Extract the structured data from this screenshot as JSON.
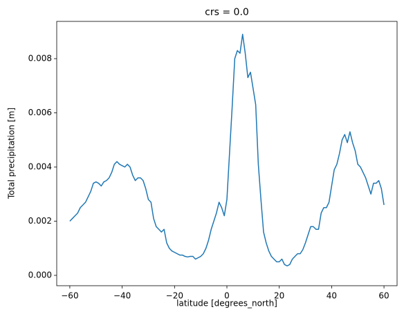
{
  "chart_data": {
    "type": "line",
    "title": "crs = 0.0",
    "xlabel": "latitude [degrees_north]",
    "ylabel": "Total precipitation [m]",
    "x": [
      -60,
      -59,
      -58,
      -57,
      -56,
      -55,
      -54,
      -53,
      -52,
      -51,
      -50,
      -49,
      -48,
      -47,
      -46,
      -45,
      -44,
      -43,
      -42,
      -41,
      -40,
      -39,
      -38,
      -37,
      -36,
      -35,
      -34,
      -33,
      -32,
      -31,
      -30,
      -29,
      -28,
      -27,
      -26,
      -25,
      -24,
      -23,
      -22,
      -21,
      -20,
      -19,
      -18,
      -17,
      -16,
      -15,
      -14,
      -13,
      -12,
      -11,
      -10,
      -9,
      -8,
      -7,
      -6,
      -5,
      -4,
      -3,
      -2,
      -1,
      0,
      1,
      2,
      3,
      4,
      5,
      6,
      7,
      8,
      9,
      10,
      11,
      12,
      13,
      14,
      15,
      16,
      17,
      18,
      19,
      20,
      21,
      22,
      23,
      24,
      25,
      26,
      27,
      28,
      29,
      30,
      31,
      32,
      33,
      34,
      35,
      36,
      37,
      38,
      39,
      40,
      41,
      42,
      43,
      44,
      45,
      46,
      47,
      48,
      49,
      50,
      51,
      52,
      53,
      54,
      55,
      56,
      57,
      58,
      59,
      60
    ],
    "series": [
      {
        "name": "Total precipitation",
        "color": "#1f77b4",
        "values": [
          0.002,
          0.0021,
          0.0022,
          0.0023,
          0.0025,
          0.0026,
          0.0027,
          0.0029,
          0.0031,
          0.0034,
          0.00345,
          0.0034,
          0.0033,
          0.00345,
          0.0035,
          0.0036,
          0.0038,
          0.0041,
          0.0042,
          0.0041,
          0.00405,
          0.004,
          0.0041,
          0.004,
          0.0037,
          0.0035,
          0.0036,
          0.0036,
          0.0035,
          0.0032,
          0.0028,
          0.0027,
          0.0021,
          0.0018,
          0.0017,
          0.0016,
          0.0017,
          0.0012,
          0.001,
          0.0009,
          0.00085,
          0.0008,
          0.00075,
          0.00075,
          0.0007,
          0.00068,
          0.0007,
          0.0007,
          0.0006,
          0.00065,
          0.0007,
          0.0008,
          0.001,
          0.0013,
          0.0017,
          0.002,
          0.0023,
          0.0027,
          0.0025,
          0.0022,
          0.0028,
          0.0045,
          0.0062,
          0.008,
          0.0083,
          0.0082,
          0.0089,
          0.0082,
          0.0073,
          0.0075,
          0.0069,
          0.0063,
          0.0041,
          0.0028,
          0.0016,
          0.0012,
          0.0009,
          0.0007,
          0.0006,
          0.0005,
          0.0005,
          0.0006,
          0.0004,
          0.00035,
          0.0004,
          0.0006,
          0.0007,
          0.0008,
          0.0008,
          0.00095,
          0.0012,
          0.0015,
          0.0018,
          0.0018,
          0.0017,
          0.0017,
          0.0023,
          0.0025,
          0.0025,
          0.0027,
          0.0033,
          0.0039,
          0.0041,
          0.0045,
          0.005,
          0.0052,
          0.0049,
          0.0053,
          0.0049,
          0.0046,
          0.0041,
          0.004,
          0.0038,
          0.0036,
          0.0033,
          0.003,
          0.0034,
          0.0034,
          0.0035,
          0.0032,
          0.0026
        ]
      }
    ],
    "xlim": [
      -65,
      65
    ],
    "xticks": [
      {
        "value": -60,
        "label": "−60"
      },
      {
        "value": -40,
        "label": "−40"
      },
      {
        "value": -20,
        "label": "−20"
      },
      0,
      20,
      40,
      60
    ],
    "ylim": [
      -0.000382,
      0.009376
    ],
    "yticks": [
      {
        "value": 0,
        "label": "0.000"
      },
      {
        "value": 0.002,
        "label": "0.002"
      },
      {
        "value": 0.004,
        "label": "0.004"
      },
      {
        "value": 0.006,
        "label": "0.006"
      },
      {
        "value": 0.008,
        "label": "0.008"
      }
    ],
    "grid": false
  }
}
